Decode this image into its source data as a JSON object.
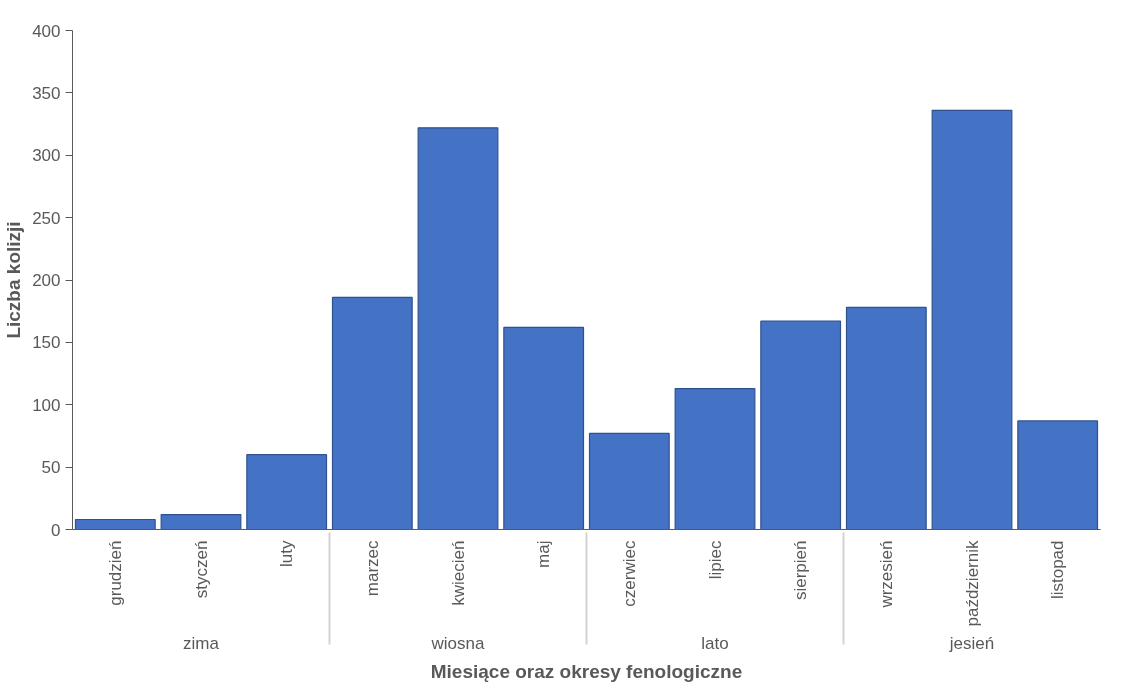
{
  "chart_data": {
    "type": "bar",
    "xlabel": "Miesiące oraz okresy fenologiczne",
    "ylabel": "Liczba kolizji",
    "categories": [
      "grudzień",
      "styczeń",
      "luty",
      "marzec",
      "kwiecień",
      "maj",
      "czerwiec",
      "lipiec",
      "sierpień",
      "wrzesień",
      "październik",
      "listopad"
    ],
    "values": [
      8,
      12,
      60,
      186,
      322,
      162,
      77,
      113,
      167,
      178,
      336,
      87
    ],
    "color": "#4472c4",
    "annotations": [
      "zima",
      "wiosna",
      "lato",
      "jesień"
    ],
    "ylim": [
      0,
      400
    ],
    "yticks": [
      0,
      50,
      100,
      150,
      200,
      250,
      300,
      350,
      400
    ],
    "grid": false
  }
}
